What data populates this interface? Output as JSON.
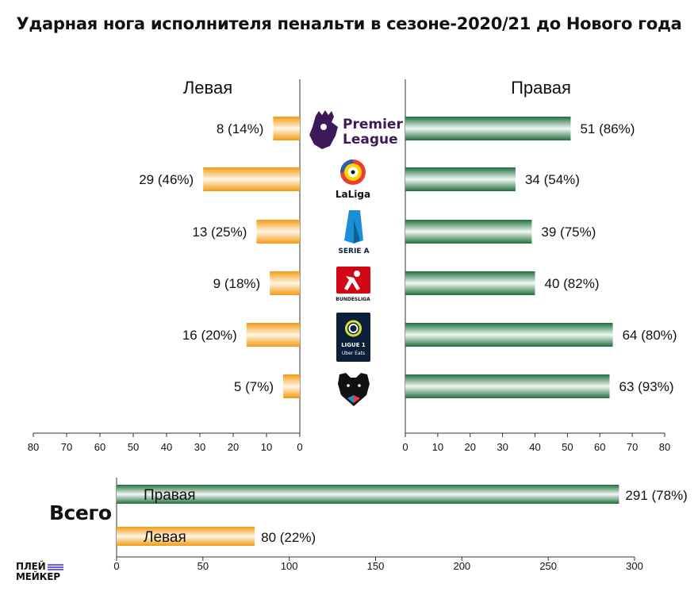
{
  "title": "Ударная нога исполнителя пенальти в сезоне-2020/21 до Нового года",
  "side_labels": {
    "left": "Левая",
    "right": "Правая"
  },
  "leagues": [
    {
      "id": "premier-league",
      "logo_text": [
        "Premier",
        "League"
      ]
    },
    {
      "id": "laliga",
      "logo_text": "LaLiga"
    },
    {
      "id": "serie-a",
      "logo_text": "SERIE A"
    },
    {
      "id": "bundesliga",
      "logo_text": "BUNDESLIGA"
    },
    {
      "id": "ligue1",
      "logo_text": [
        "LIGUE 1",
        "Uber Eats"
      ]
    },
    {
      "id": "rpl",
      "logo_text": ""
    }
  ],
  "total": {
    "heading": "Всего"
  },
  "brand": {
    "line1": "ПЛЕЙ",
    "line2": "МЕЙКЕР"
  },
  "colors": {
    "left_bar": "#f7a21c",
    "right_bar": "#2b7a4b",
    "premier_league": "#3d195b",
    "laliga_red": "#ee3b33",
    "seriea_blue": "#1b8fd6",
    "bundesliga_red": "#d20515",
    "ligue1_navy": "#0b1f3a",
    "ligue1_lime": "#dae025",
    "rpl_black": "#111111"
  },
  "chart_data": [
    {
      "type": "bar",
      "orientation": "horizontal-diverging",
      "categories": [
        "Premier League",
        "LaLiga",
        "Serie A",
        "Bundesliga",
        "Ligue 1",
        "RPL"
      ],
      "series": [
        {
          "name": "Левая",
          "values": [
            8,
            29,
            13,
            9,
            16,
            5
          ],
          "labels": [
            "8 (14%)",
            "29 (46%)",
            "13 (25%)",
            "9 (18%)",
            "16 (20%)",
            "5 (7%)"
          ]
        },
        {
          "name": "Правая",
          "values": [
            51,
            34,
            39,
            40,
            64,
            63
          ],
          "labels": [
            "51 (86%)",
            "34 (54%)",
            "39 (75%)",
            "40 (82%)",
            "64 (80%)",
            "63 (93%)"
          ]
        }
      ],
      "xlim": [
        0,
        80
      ],
      "ticks": [
        "0",
        "10",
        "20",
        "30",
        "40",
        "50",
        "60",
        "70",
        "80"
      ],
      "grid": false
    },
    {
      "type": "bar",
      "orientation": "horizontal",
      "title": "Всего",
      "categories": [
        "Правая",
        "Левая"
      ],
      "values": [
        291,
        80
      ],
      "labels": [
        "291 (78%)",
        "80 (22%)"
      ],
      "xlim": [
        0,
        300
      ],
      "ticks": [
        "0",
        "50",
        "100",
        "150",
        "200",
        "250",
        "300"
      ],
      "grid": false
    }
  ]
}
